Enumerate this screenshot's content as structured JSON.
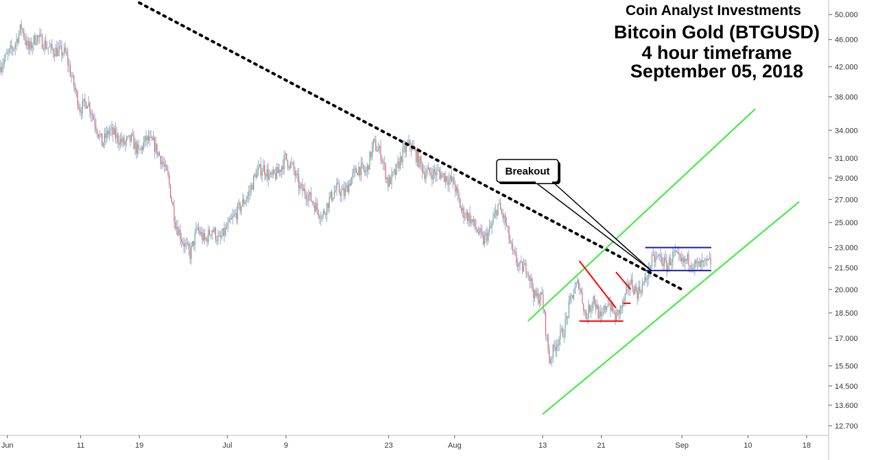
{
  "header": {
    "company": "Coin Analyst Investments",
    "title": "Bitcoin Gold (BTGUSD)",
    "timeframe": "4 hour timeframe",
    "date": "September 05, 2018"
  },
  "chart_data": {
    "type": "candlestick",
    "title": "Bitcoin Gold (BTGUSD)",
    "subtitle": "4 hour timeframe",
    "y_scale": "log",
    "ylim": [
      12.3,
      52.0
    ],
    "y_ticks": [
      "50.000",
      "46.000",
      "42.000",
      "38.000",
      "34.000",
      "31.000",
      "29.000",
      "27.000",
      "25.000",
      "23.000",
      "21.500",
      "20.000",
      "18.500",
      "17.000",
      "15.500",
      "14.500",
      "13.600",
      "12.700"
    ],
    "x_ticks": [
      {
        "label": "Jun",
        "date": "2018-06-01"
      },
      {
        "label": "11",
        "date": "2018-06-11"
      },
      {
        "label": "19",
        "date": "2018-06-19"
      },
      {
        "label": "Jul",
        "date": "2018-07-01"
      },
      {
        "label": "9",
        "date": "2018-07-09"
      },
      {
        "label": "23",
        "date": "2018-07-23"
      },
      {
        "label": "Aug",
        "date": "2018-08-01"
      },
      {
        "label": "13",
        "date": "2018-08-13"
      },
      {
        "label": "21",
        "date": "2018-08-21"
      },
      {
        "label": "Sep",
        "date": "2018-09-01"
      },
      {
        "label": "10",
        "date": "2018-09-10"
      },
      {
        "label": "18",
        "date": "2018-09-18"
      }
    ],
    "xlim": [
      "2018-05-31",
      "2018-09-21"
    ],
    "price_path": [
      [
        "2018-05-31",
        42.0
      ],
      [
        "2018-06-02",
        45.0
      ],
      [
        "2018-06-03",
        48.0
      ],
      [
        "2018-06-04",
        44.5
      ],
      [
        "2018-06-05",
        46.5
      ],
      [
        "2018-06-07",
        44.5
      ],
      [
        "2018-06-09",
        44.0
      ],
      [
        "2018-06-10",
        40.0
      ],
      [
        "2018-06-11",
        36.5
      ],
      [
        "2018-06-12",
        37.5
      ],
      [
        "2018-06-13",
        35.0
      ],
      [
        "2018-06-14",
        32.5
      ],
      [
        "2018-06-15",
        34.0
      ],
      [
        "2018-06-17",
        32.5
      ],
      [
        "2018-06-18",
        33.0
      ],
      [
        "2018-06-19",
        31.5
      ],
      [
        "2018-06-20",
        33.0
      ],
      [
        "2018-06-21",
        32.5
      ],
      [
        "2018-06-22",
        31.0
      ],
      [
        "2018-06-23",
        29.0
      ],
      [
        "2018-06-24",
        25.0
      ],
      [
        "2018-06-25",
        23.5
      ],
      [
        "2018-06-26",
        22.5
      ],
      [
        "2018-06-27",
        24.5
      ],
      [
        "2018-06-28",
        23.5
      ],
      [
        "2018-06-29",
        24.5
      ],
      [
        "2018-06-30",
        23.5
      ],
      [
        "2018-07-01",
        24.5
      ],
      [
        "2018-07-02",
        25.5
      ],
      [
        "2018-07-03",
        26.5
      ],
      [
        "2018-07-04",
        27.5
      ],
      [
        "2018-07-05",
        29.5
      ],
      [
        "2018-07-06",
        30.0
      ],
      [
        "2018-07-07",
        29.0
      ],
      [
        "2018-07-08",
        29.5
      ],
      [
        "2018-07-09",
        31.0
      ],
      [
        "2018-07-10",
        30.0
      ],
      [
        "2018-07-11",
        28.0
      ],
      [
        "2018-07-12",
        27.5
      ],
      [
        "2018-07-13",
        26.5
      ],
      [
        "2018-07-14",
        25.5
      ],
      [
        "2018-07-15",
        27.0
      ],
      [
        "2018-07-16",
        28.0
      ],
      [
        "2018-07-17",
        27.5
      ],
      [
        "2018-07-18",
        29.0
      ],
      [
        "2018-07-19",
        30.0
      ],
      [
        "2018-07-20",
        29.5
      ],
      [
        "2018-07-21",
        32.5
      ],
      [
        "2018-07-22",
        31.5
      ],
      [
        "2018-07-23",
        28.5
      ],
      [
        "2018-07-24",
        29.5
      ],
      [
        "2018-07-25",
        31.5
      ],
      [
        "2018-07-26",
        32.5
      ],
      [
        "2018-07-27",
        31.0
      ],
      [
        "2018-07-28",
        29.5
      ],
      [
        "2018-07-30",
        29.5
      ],
      [
        "2018-07-31",
        29.0
      ],
      [
        "2018-08-01",
        28.5
      ],
      [
        "2018-08-02",
        26.0
      ],
      [
        "2018-08-03",
        25.5
      ],
      [
        "2018-08-04",
        24.5
      ],
      [
        "2018-08-05",
        23.5
      ],
      [
        "2018-08-06",
        24.5
      ],
      [
        "2018-08-07",
        26.5
      ],
      [
        "2018-08-08",
        25.0
      ],
      [
        "2018-08-09",
        22.5
      ],
      [
        "2018-08-10",
        21.5
      ],
      [
        "2018-08-11",
        21.5
      ],
      [
        "2018-08-12",
        19.5
      ],
      [
        "2018-08-13",
        19.5
      ],
      [
        "2018-08-14",
        15.8
      ],
      [
        "2018-08-15",
        16.8
      ],
      [
        "2018-08-16",
        17.5
      ],
      [
        "2018-08-17",
        19.5
      ],
      [
        "2018-08-18",
        20.5
      ],
      [
        "2018-08-19",
        18.2
      ],
      [
        "2018-08-20",
        19.5
      ],
      [
        "2018-08-21",
        18.0
      ],
      [
        "2018-08-22",
        19.3
      ],
      [
        "2018-08-23",
        18.2
      ],
      [
        "2018-08-24",
        19.0
      ],
      [
        "2018-08-25",
        20.5
      ],
      [
        "2018-08-26",
        19.8
      ],
      [
        "2018-08-27",
        20.5
      ],
      [
        "2018-08-28",
        22.0
      ],
      [
        "2018-08-29",
        22.3
      ],
      [
        "2018-08-30",
        21.6
      ],
      [
        "2018-08-31",
        22.5
      ],
      [
        "2018-09-01",
        21.8
      ],
      [
        "2018-09-02",
        22.1
      ],
      [
        "2018-09-03",
        21.6
      ],
      [
        "2018-09-04",
        21.7
      ],
      [
        "2018-09-05",
        21.9
      ]
    ],
    "trendline_dotted": {
      "color": "#000000",
      "points": [
        [
          "2018-06-19",
          52.0
        ],
        [
          "2018-09-01",
          20.0
        ]
      ]
    },
    "channel_lines": {
      "color": "#33ee33",
      "lines": [
        [
          [
            "2018-08-11",
            18.0
          ],
          [
            "2018-09-11",
            36.5
          ]
        ],
        [
          [
            "2018-08-13",
            13.2
          ],
          [
            "2018-09-17",
            26.8
          ]
        ]
      ]
    },
    "triangle_lines": {
      "color": "#ff0000",
      "lines": [
        [
          [
            "2018-08-18",
            22.0
          ],
          [
            "2018-08-23",
            18.8
          ]
        ],
        [
          [
            "2018-08-18",
            18.0
          ],
          [
            "2018-08-24",
            18.0
          ]
        ],
        [
          [
            "2018-08-23",
            21.2
          ],
          [
            "2018-08-25",
            20.0
          ]
        ],
        [
          [
            "2018-08-24",
            19.1
          ],
          [
            "2018-08-25",
            19.1
          ]
        ]
      ]
    },
    "range_lines": {
      "color": "#1a1aa8",
      "lines": [
        [
          [
            "2018-08-27",
            23.0
          ],
          [
            "2018-09-05",
            23.0
          ]
        ],
        [
          [
            "2018-08-27",
            21.3
          ],
          [
            "2018-09-05",
            21.3
          ]
        ]
      ]
    },
    "annotation": {
      "text": "Breakout",
      "target": [
        "2018-08-28",
        21.3
      ]
    },
    "colors": {
      "up": "#4aa87a",
      "down": "#e24a5c",
      "wick": "#9aa8c8"
    }
  }
}
